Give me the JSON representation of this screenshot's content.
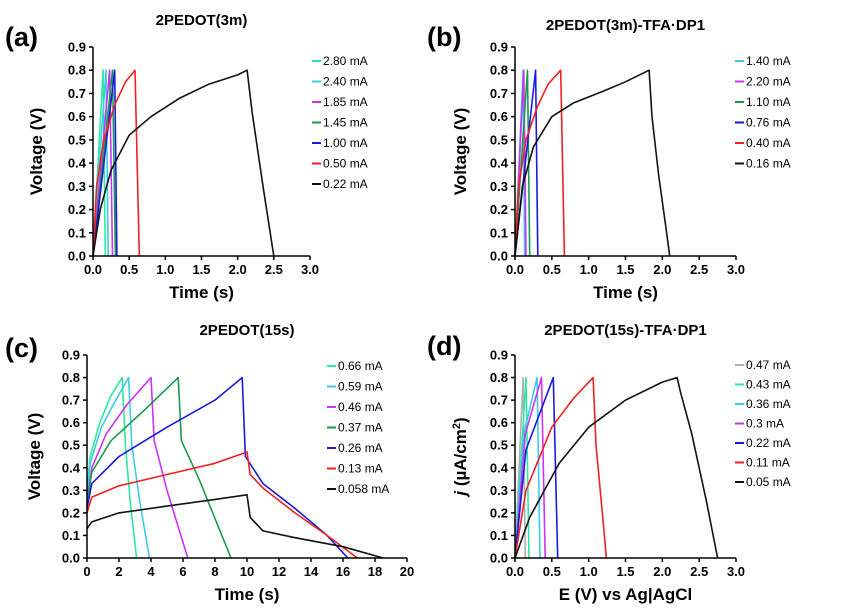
{
  "chart_data": [
    {
      "type": "line",
      "panel_label": "(a)",
      "title": "2PEDOT(3m)",
      "xlabel": "Time (s)",
      "ylabel": "Voltage (V)",
      "xlim": [
        0,
        3.0
      ],
      "ylim": [
        0,
        0.9
      ],
      "x_ticks": [
        "0.0",
        "0.5",
        "1.0",
        "1.5",
        "2.0",
        "2.5",
        "3.0"
      ],
      "y_ticks": [
        "0.0",
        "0.1",
        "0.2",
        "0.3",
        "0.4",
        "0.5",
        "0.6",
        "0.7",
        "0.8",
        "0.9"
      ],
      "grid": false,
      "legend_position": "top-right",
      "series": [
        {
          "name": "2.80 mA",
          "color": "#2ee8a0",
          "x": [
            0,
            0.14,
            0.17
          ],
          "y": [
            0,
            0.8,
            0
          ]
        },
        {
          "name": "2.40 mA",
          "color": "#3ccbea",
          "x": [
            0,
            0.18,
            0.21
          ],
          "y": [
            0,
            0.8,
            0
          ]
        },
        {
          "name": "1.85 mA",
          "color": "#cc33ee",
          "x": [
            0,
            0.23,
            0.27
          ],
          "y": [
            0,
            0.8,
            0
          ]
        },
        {
          "name": "1.45 mA",
          "color": "#1a9a50",
          "x": [
            0,
            0.27,
            0.31
          ],
          "y": [
            0,
            0.8,
            0
          ]
        },
        {
          "name": "1.00 mA",
          "color": "#1a1adc",
          "x": [
            0,
            0.3,
            0.33
          ],
          "y": [
            0,
            0.8,
            0
          ]
        },
        {
          "name": "0.50 mA",
          "color": "#ee2222",
          "x": [
            0,
            0.05,
            0.15,
            0.3,
            0.45,
            0.58,
            0.64
          ],
          "y": [
            0,
            0.3,
            0.5,
            0.65,
            0.75,
            0.8,
            0
          ]
        },
        {
          "name": "0.22 mA",
          "color": "#111111",
          "x": [
            0,
            0.1,
            0.25,
            0.5,
            0.8,
            1.2,
            1.6,
            2.0,
            2.13,
            2.2,
            2.35,
            2.5
          ],
          "y": [
            0,
            0.2,
            0.37,
            0.52,
            0.6,
            0.68,
            0.74,
            0.78,
            0.8,
            0.62,
            0.3,
            0
          ]
        }
      ]
    },
    {
      "type": "line",
      "panel_label": "(b)",
      "title": "2PEDOT(3m)-TFA·DP1",
      "xlabel": "Time (s)",
      "ylabel": "Voltage (V)",
      "xlim": [
        0,
        3.0
      ],
      "ylim": [
        0,
        0.9
      ],
      "x_ticks": [
        "0.0",
        "0.5",
        "1.0",
        "1.5",
        "2.0",
        "2.5",
        "3.0"
      ],
      "y_ticks": [
        "0.0",
        "0.1",
        "0.2",
        "0.3",
        "0.4",
        "0.5",
        "0.6",
        "0.7",
        "0.8",
        "0.9"
      ],
      "grid": false,
      "legend_position": "top-right",
      "series": [
        {
          "name": "1.40 mA",
          "color": "#3ccbea",
          "x": [
            0,
            0.11,
            0.13
          ],
          "y": [
            0,
            0.8,
            0
          ]
        },
        {
          "name": "2.20 mA",
          "color": "#cc33ee",
          "x": [
            0,
            0.12,
            0.15
          ],
          "y": [
            0,
            0.8,
            0
          ]
        },
        {
          "name": "1.10 mA",
          "color": "#1a9a50",
          "x": [
            0,
            0.17,
            0.2
          ],
          "y": [
            0,
            0.8,
            0
          ]
        },
        {
          "name": "0.76 mA",
          "color": "#1a1adc",
          "x": [
            0,
            0.28,
            0.31
          ],
          "y": [
            0,
            0.8,
            0
          ]
        },
        {
          "name": "0.40 mA",
          "color": "#ee2222",
          "x": [
            0,
            0.05,
            0.15,
            0.3,
            0.45,
            0.62,
            0.67
          ],
          "y": [
            0,
            0.3,
            0.5,
            0.64,
            0.74,
            0.8,
            0
          ]
        },
        {
          "name": "0.16 mA",
          "color": "#111111",
          "x": [
            0,
            0.1,
            0.25,
            0.5,
            0.8,
            1.2,
            1.5,
            1.82,
            1.86,
            1.95,
            2.05,
            2.1
          ],
          "y": [
            0,
            0.3,
            0.47,
            0.6,
            0.66,
            0.71,
            0.75,
            0.8,
            0.6,
            0.35,
            0.12,
            0
          ]
        }
      ]
    },
    {
      "type": "line",
      "panel_label": "(c)",
      "title": "2PEDOT(15s)",
      "xlabel": "Time (s)",
      "ylabel": "Voltage (V)",
      "xlim": [
        0,
        20
      ],
      "ylim": [
        0,
        0.9
      ],
      "x_ticks": [
        "0",
        "2",
        "4",
        "6",
        "8",
        "10",
        "12",
        "14",
        "16",
        "18",
        "20"
      ],
      "y_ticks": [
        "0.0",
        "0.1",
        "0.2",
        "0.3",
        "0.4",
        "0.5",
        "0.6",
        "0.7",
        "0.8",
        "0.9"
      ],
      "grid": false,
      "legend_position": "top-right",
      "series": [
        {
          "name": "0.66 mA",
          "color": "#2ee8a0",
          "x": [
            0,
            0.2,
            0.8,
            1.5,
            2.2,
            2.4,
            2.7,
            3.1
          ],
          "y": [
            0.3,
            0.45,
            0.6,
            0.72,
            0.8,
            0.5,
            0.25,
            0
          ]
        },
        {
          "name": "0.59 mA",
          "color": "#3ccbea",
          "x": [
            0,
            0.2,
            0.9,
            1.8,
            2.6,
            2.8,
            3.3,
            3.9
          ],
          "y": [
            0.28,
            0.42,
            0.58,
            0.7,
            0.8,
            0.5,
            0.25,
            0
          ]
        },
        {
          "name": "0.46 mA",
          "color": "#cc33ee",
          "x": [
            0,
            0.3,
            1.2,
            2.5,
            4.0,
            4.2,
            5.0,
            6.3
          ],
          "y": [
            0.25,
            0.4,
            0.55,
            0.68,
            0.8,
            0.52,
            0.3,
            0
          ]
        },
        {
          "name": "0.37 mA",
          "color": "#1a9a50",
          "x": [
            0,
            0.3,
            1.5,
            3.5,
            5.7,
            5.9,
            7.0,
            9.0
          ],
          "y": [
            0.24,
            0.38,
            0.52,
            0.65,
            0.8,
            0.52,
            0.35,
            0
          ]
        },
        {
          "name": "0.26 mA",
          "color": "#1a1adc",
          "x": [
            0,
            0.3,
            2,
            5,
            8,
            9.7,
            9.9,
            11,
            13,
            15,
            16.3
          ],
          "y": [
            0.22,
            0.33,
            0.45,
            0.58,
            0.7,
            0.8,
            0.45,
            0.33,
            0.22,
            0.1,
            0
          ]
        },
        {
          "name": "0.13 mA",
          "color": "#ee2222",
          "x": [
            0,
            0.3,
            2,
            5,
            8,
            10,
            10.2,
            11,
            13,
            15,
            16.9
          ],
          "y": [
            0.2,
            0.27,
            0.32,
            0.37,
            0.42,
            0.47,
            0.37,
            0.31,
            0.2,
            0.1,
            0
          ]
        },
        {
          "name": "0.058 mA",
          "color": "#111111",
          "x": [
            0,
            0.3,
            2,
            5,
            8,
            10,
            10.2,
            11,
            13,
            16,
            18.5
          ],
          "y": [
            0.13,
            0.16,
            0.2,
            0.23,
            0.26,
            0.28,
            0.18,
            0.12,
            0.09,
            0.05,
            0
          ]
        }
      ]
    },
    {
      "type": "line",
      "panel_label": "(d)",
      "title": "2PEDOT(15s)-TFA·DP1",
      "xlabel": "E (V) vs Ag|AgCl",
      "ylabel_parts": [
        "j",
        " (µA/cm",
        "2",
        ")"
      ],
      "xlim": [
        0,
        3.0
      ],
      "ylim": [
        0,
        0.9
      ],
      "x_ticks": [
        "0.0",
        "0.5",
        "1.0",
        "1.5",
        "2.0",
        "2.5",
        "3.0"
      ],
      "y_ticks": [
        "0.0",
        "0.1",
        "0.2",
        "0.3",
        "0.4",
        "0.5",
        "0.6",
        "0.7",
        "0.8",
        "0.9"
      ],
      "grid": false,
      "legend_position": "top-right",
      "series": [
        {
          "name": "0.47 mA",
          "color": "#b0b0b0",
          "x": [
            0,
            0.11,
            0.14
          ],
          "y": [
            0,
            0.8,
            0
          ]
        },
        {
          "name": "0.43 mA",
          "color": "#2ee8a0",
          "x": [
            0,
            0.15,
            0.19
          ],
          "y": [
            0,
            0.8,
            0
          ]
        },
        {
          "name": "0.36 mA",
          "color": "#3ccbea",
          "x": [
            0,
            0.12,
            0.3,
            0.34
          ],
          "y": [
            0,
            0.55,
            0.8,
            0
          ]
        },
        {
          "name": "0.3 mA",
          "color": "#cc33ee",
          "x": [
            0,
            0.14,
            0.36,
            0.41
          ],
          "y": [
            0,
            0.55,
            0.8,
            0
          ]
        },
        {
          "name": "0.22 mA",
          "color": "#1a1adc",
          "x": [
            0,
            0.15,
            0.52,
            0.58
          ],
          "y": [
            0,
            0.48,
            0.8,
            0
          ]
        },
        {
          "name": "0.11 mA",
          "color": "#ee2222",
          "x": [
            0,
            0.15,
            0.5,
            0.8,
            1.06,
            1.1,
            1.2,
            1.24
          ],
          "y": [
            0,
            0.3,
            0.58,
            0.71,
            0.8,
            0.5,
            0.15,
            0
          ]
        },
        {
          "name": "0.05 mA",
          "color": "#111111",
          "x": [
            0,
            0.2,
            0.6,
            1.0,
            1.5,
            2.0,
            2.2,
            2.25,
            2.4,
            2.6,
            2.75
          ],
          "y": [
            0,
            0.18,
            0.42,
            0.58,
            0.7,
            0.78,
            0.8,
            0.73,
            0.55,
            0.25,
            0
          ]
        }
      ]
    }
  ]
}
